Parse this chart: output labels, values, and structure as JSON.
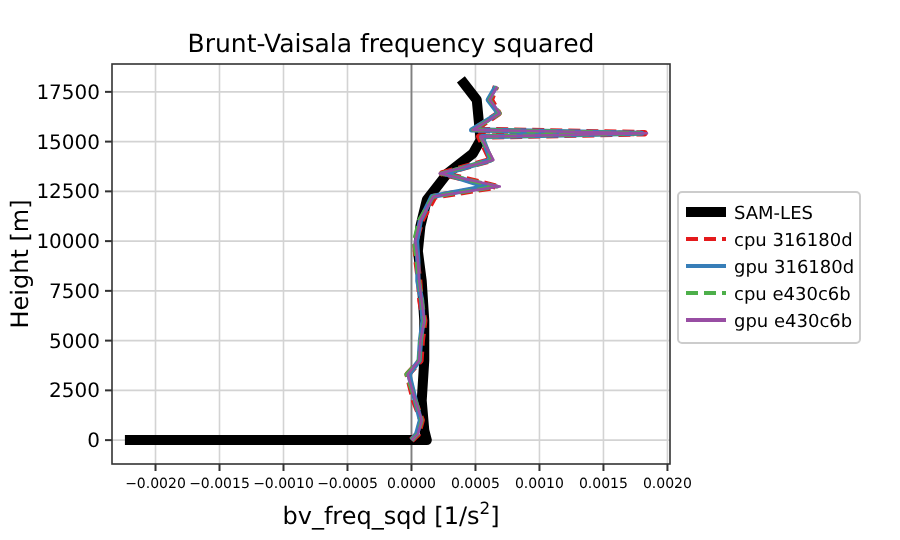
{
  "chart_data": {
    "type": "line",
    "title": "Brunt-Vaisala frequency squared",
    "xlabel": "bv_freq_sqd [1/s$^{2}$]",
    "ylabel": "Height [m]",
    "xlim": [
      -0.00234,
      0.00202
    ],
    "ylim": [
      -1200,
      18900
    ],
    "xticks": [
      {
        "value": -0.002,
        "label": "−0.0020"
      },
      {
        "value": -0.0015,
        "label": "−0.0015"
      },
      {
        "value": -0.001,
        "label": "−0.0010"
      },
      {
        "value": -0.0005,
        "label": "−0.0005"
      },
      {
        "value": 0,
        "label": "0.0000"
      },
      {
        "value": 0.0005,
        "label": "0.0005"
      },
      {
        "value": 0.001,
        "label": "0.0010"
      },
      {
        "value": 0.0015,
        "label": "0.0015"
      },
      {
        "value": 0.002,
        "label": "0.0020"
      }
    ],
    "yticks": [
      0,
      2500,
      5000,
      7500,
      10000,
      12500,
      15000,
      17500
    ],
    "grid": true,
    "legend": "right",
    "ref_lines": [
      {
        "axis": "x",
        "value": 0,
        "color": "#808080"
      }
    ],
    "series": [
      {
        "name": "SAM-LES",
        "color": "#000000",
        "line_style": "solid",
        "x": [
          -0.0022,
          0.00012,
          0.0001,
          8e-05,
          0.0001,
          0.0001,
          8e-05,
          5e-05,
          7e-05,
          0.00012,
          0.00028,
          0.00048,
          0.00054,
          0.00051,
          0.00041
        ],
        "values": [
          0,
          0,
          500,
          2000,
          4000,
          6000,
          8000,
          9500,
          10760,
          12070,
          13400,
          14400,
          15080,
          17100,
          17930
        ]
      },
      {
        "name": "cpu 316180d",
        "color": "#e41a1c",
        "line_style": "dashed",
        "x": [
          0,
          5e-05,
          8e-05,
          2e-05,
          -3e-05,
          7e-05,
          8e-05,
          0.0001,
          7e-05,
          6e-05,
          4e-05,
          3e-05,
          8e-05,
          0.00018,
          0.00066,
          0.00024,
          0.00062,
          0.00053,
          0.00182,
          0.00049,
          0.00068,
          0.00062,
          0.00066
        ],
        "values": [
          0,
          300,
          1000,
          2000,
          3300,
          4000,
          5000,
          6000,
          7000,
          8000,
          9000,
          10000,
          11060,
          12240,
          12740,
          13400,
          14080,
          15250,
          15420,
          15590,
          16420,
          17100,
          17770
        ]
      },
      {
        "name": "gpu 316180d",
        "color": "#377eb8",
        "line_style": "solid",
        "x": [
          0,
          4e-05,
          7e-05,
          3e-05,
          -2e-05,
          6e-05,
          7e-05,
          9e-05,
          8e-05,
          5e-05,
          5e-05,
          4e-05,
          7e-05,
          0.00016,
          0.00058,
          0.00026,
          0.00062,
          0.00055,
          0.0018,
          0.00047,
          0.00068,
          0.0006,
          0.00066
        ],
        "values": [
          0,
          300,
          1000,
          2000,
          3300,
          4000,
          5000,
          6000,
          7000,
          8000,
          9000,
          10000,
          11060,
          12240,
          12740,
          13400,
          14080,
          15250,
          15420,
          15590,
          16420,
          17100,
          17770
        ]
      },
      {
        "name": "cpu e430c6b",
        "color": "#4daf4a",
        "line_style": "dashed",
        "x": [
          0,
          5e-05,
          8e-05,
          3e-05,
          -4e-05,
          6e-05,
          7e-05,
          0.0001,
          8e-05,
          6e-05,
          4e-05,
          2e-05,
          6e-05,
          0.00017,
          0.00067,
          0.00023,
          0.00063,
          0.00054,
          0.00178,
          0.00048,
          0.00069,
          0.00061,
          0.00067
        ],
        "values": [
          0,
          300,
          1000,
          2000,
          3300,
          4000,
          5000,
          6000,
          7000,
          8000,
          9000,
          10000,
          11060,
          12240,
          12740,
          13400,
          14080,
          15250,
          15420,
          15590,
          16420,
          17100,
          17770
        ]
      },
      {
        "name": "gpu e430c6b",
        "color": "#984ea3",
        "line_style": "solid",
        "x": [
          0,
          5e-05,
          8e-05,
          3e-05,
          -3e-05,
          6e-05,
          7e-05,
          0.0001,
          8e-05,
          6e-05,
          5e-05,
          3e-05,
          7e-05,
          0.00017,
          0.00069,
          0.00022,
          0.00064,
          0.00054,
          0.00184,
          0.00048,
          0.00069,
          0.00061,
          0.00067
        ],
        "values": [
          0,
          300,
          1000,
          2000,
          3300,
          4000,
          5000,
          6000,
          7000,
          8000,
          9000,
          10000,
          11060,
          12240,
          12740,
          13400,
          14080,
          15250,
          15420,
          15590,
          16420,
          17100,
          17770
        ]
      }
    ]
  }
}
